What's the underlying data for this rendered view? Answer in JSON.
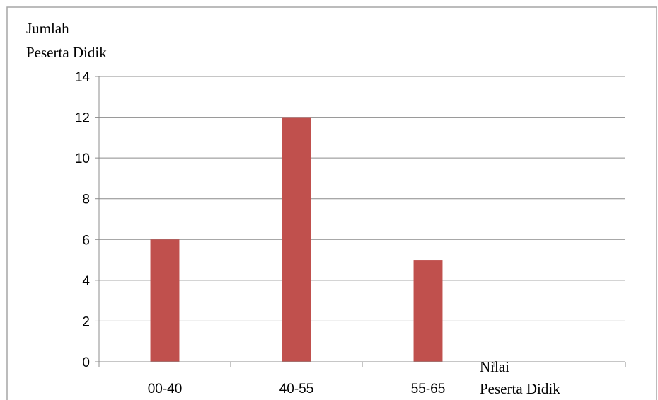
{
  "chart_data": {
    "type": "bar",
    "title": "",
    "ylabel": [
      "Jumlah",
      "Peserta Didik"
    ],
    "xlabel": [
      "Nilai",
      "Peserta Didik"
    ],
    "categories": [
      "00-40",
      "40-55",
      "55-65",
      ""
    ],
    "values": [
      6,
      12,
      5,
      null
    ],
    "ylim": [
      0,
      14
    ],
    "yticks": [
      0,
      2,
      4,
      6,
      8,
      10,
      12,
      14
    ],
    "grid": true,
    "legend": "none",
    "bar_color": "#c0504d"
  }
}
